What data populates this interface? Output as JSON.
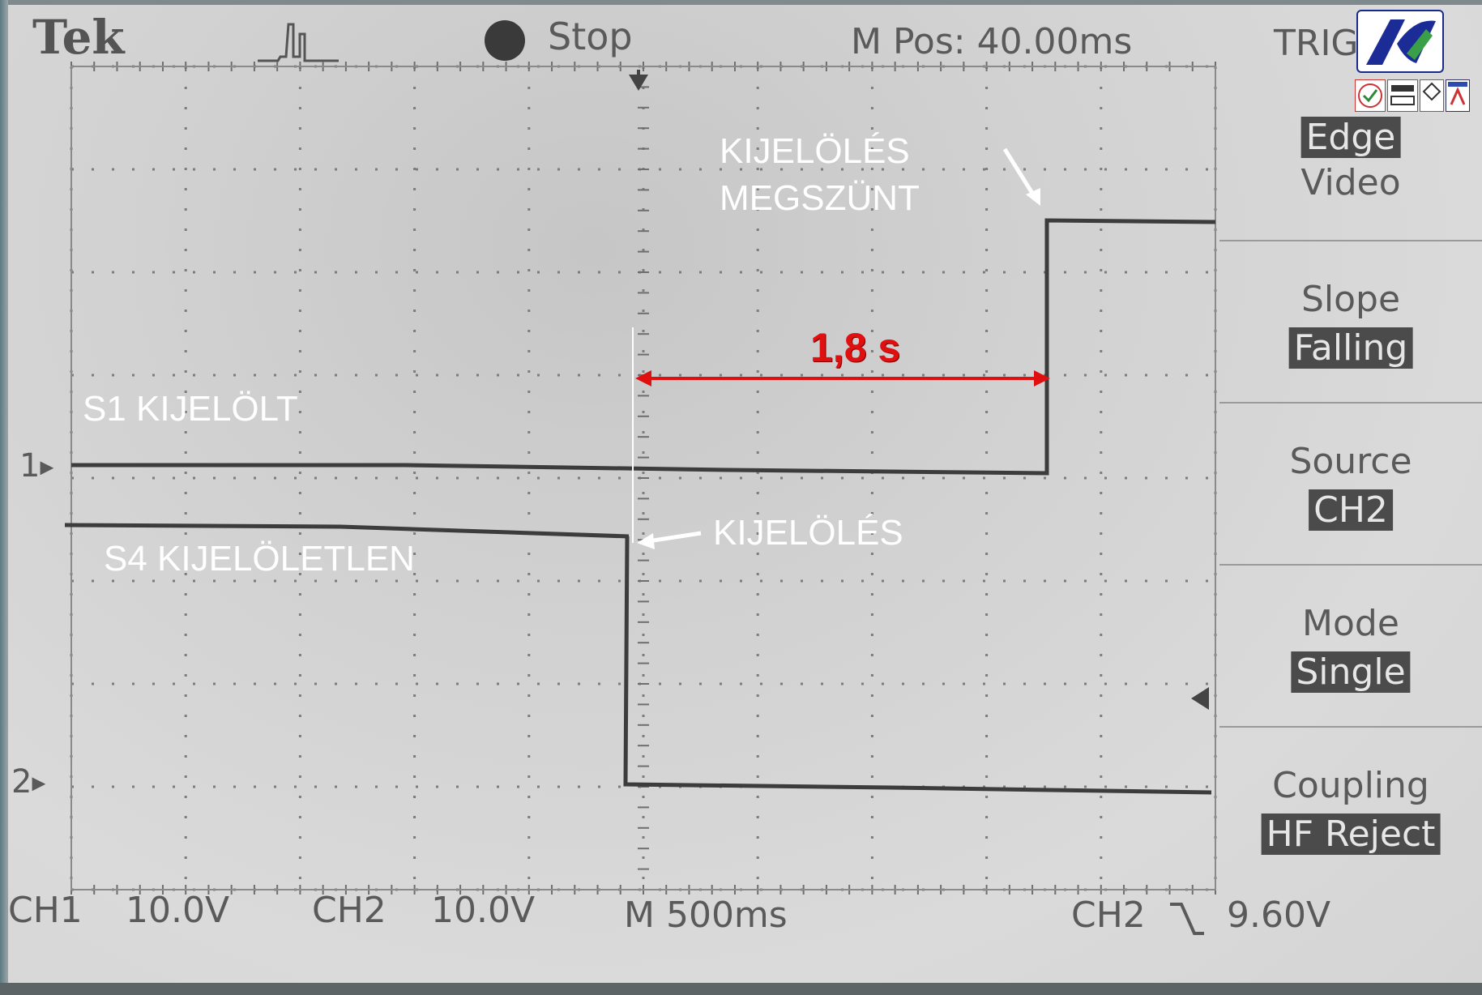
{
  "header": {
    "brand": "Tek",
    "status": "Stop",
    "m_pos": "M Pos: 40.00ms",
    "trigger_menu_title": "TRIG"
  },
  "trigger_menu": {
    "type": {
      "selected": "Edge",
      "other": "Video"
    },
    "slope": {
      "label": "Slope",
      "value": "Falling"
    },
    "source": {
      "label": "Source",
      "value": "CH2"
    },
    "mode": {
      "label": "Mode",
      "value": "Single"
    },
    "coupling": {
      "label": "Coupling",
      "value": "HF Reject"
    }
  },
  "channel_markers": {
    "ch1": "1",
    "ch2": "2"
  },
  "footer": {
    "ch1_label": "CH1",
    "ch1_scale": "10.0V",
    "ch2_label": "CH2",
    "ch2_scale": "10.0V",
    "timebase": "M 500ms",
    "trigger_source": "CH2",
    "trigger_level": "9.60V"
  },
  "annotations": {
    "s1": "S1 KIJELÖLT",
    "s4": "S4  KIJELÖLETLEN",
    "select": "KIJELÖLÉS",
    "deselect_line1": "KIJELÖLÉS",
    "deselect_line2": "MEGSZÜNT",
    "interval": "1,8 s"
  },
  "colors": {
    "screen_bg": "#d3d3d3",
    "trace": "#3c3c3c",
    "grid": "#7a7a7a",
    "annotation_text": "#ffffff",
    "interval_arrow": "#e01010"
  },
  "waveforms": {
    "ch1": {
      "low_to_high_time_divisions": 8.9
    },
    "ch2": {
      "high_to_low_time_divisions": 5.0
    }
  }
}
